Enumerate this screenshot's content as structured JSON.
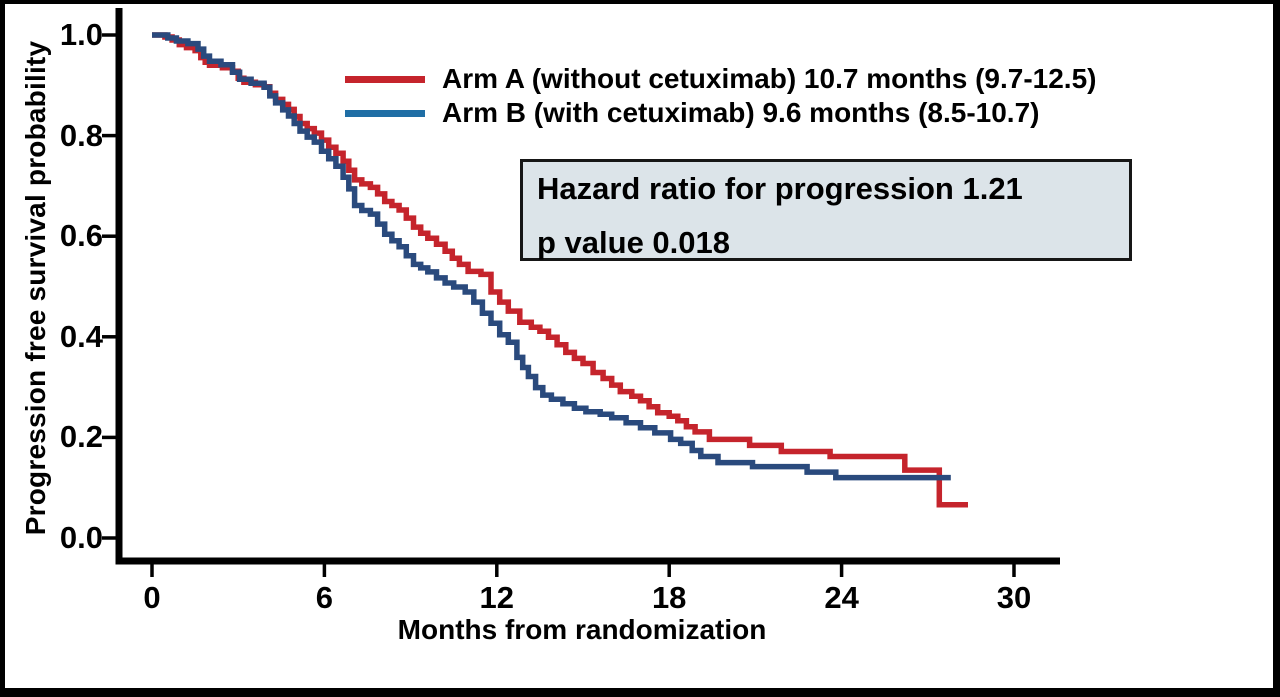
{
  "figure": {
    "background": "#ffffff",
    "border_color": "#000000",
    "axis_color": "#000000",
    "text_color": "#000000"
  },
  "chart_data": {
    "type": "line",
    "subtype": "kaplan-meier-step-curves",
    "title": "",
    "xlabel": "Months from randomization",
    "ylabel": "Progression free survival probability",
    "xlim": [
      0,
      30
    ],
    "ylim": [
      0.0,
      1.0
    ],
    "x_ticks": [
      0,
      6,
      12,
      18,
      24,
      30
    ],
    "y_ticks": [
      "1.0",
      "0.8",
      "0.6",
      "0.4",
      "0.2",
      "0.0"
    ],
    "grid": false,
    "legend_position": "top-inside",
    "series": [
      {
        "name": "Arm A (without cetuximab) 10.7 months (9.7-12.5)",
        "median_months": 10.7,
        "ci": "9.7-12.5",
        "color": "#c5242c",
        "legend_color": "#c5242c",
        "points": [
          [
            0,
            1.0
          ],
          [
            0.45,
            0.996
          ],
          [
            0.7,
            0.99
          ],
          [
            0.95,
            0.981
          ],
          [
            1.2,
            0.975
          ],
          [
            1.5,
            0.969
          ],
          [
            1.7,
            0.955
          ],
          [
            1.85,
            0.946
          ],
          [
            2.0,
            0.94
          ],
          [
            2.45,
            0.935
          ],
          [
            2.8,
            0.928
          ],
          [
            3.0,
            0.914
          ],
          [
            3.2,
            0.906
          ],
          [
            3.6,
            0.901
          ],
          [
            3.9,
            0.897
          ],
          [
            4.1,
            0.884
          ],
          [
            4.3,
            0.872
          ],
          [
            4.55,
            0.862
          ],
          [
            4.75,
            0.852
          ],
          [
            4.95,
            0.838
          ],
          [
            5.15,
            0.824
          ],
          [
            5.4,
            0.814
          ],
          [
            5.65,
            0.805
          ],
          [
            5.9,
            0.791
          ],
          [
            6.15,
            0.777
          ],
          [
            6.4,
            0.765
          ],
          [
            6.65,
            0.749
          ],
          [
            6.85,
            0.731
          ],
          [
            7.05,
            0.712
          ],
          [
            7.3,
            0.704
          ],
          [
            7.6,
            0.697
          ],
          [
            7.85,
            0.684
          ],
          [
            8.1,
            0.669
          ],
          [
            8.35,
            0.661
          ],
          [
            8.6,
            0.652
          ],
          [
            8.85,
            0.636
          ],
          [
            9.1,
            0.618
          ],
          [
            9.35,
            0.606
          ],
          [
            9.6,
            0.596
          ],
          [
            9.9,
            0.584
          ],
          [
            10.2,
            0.57
          ],
          [
            10.45,
            0.556
          ],
          [
            10.7,
            0.544
          ],
          [
            11.0,
            0.53
          ],
          [
            11.45,
            0.524
          ],
          [
            11.8,
            0.489
          ],
          [
            12.1,
            0.469
          ],
          [
            12.4,
            0.451
          ],
          [
            12.8,
            0.429
          ],
          [
            13.2,
            0.419
          ],
          [
            13.5,
            0.411
          ],
          [
            13.8,
            0.399
          ],
          [
            14.1,
            0.384
          ],
          [
            14.4,
            0.369
          ],
          [
            14.7,
            0.357
          ],
          [
            15.0,
            0.347
          ],
          [
            15.35,
            0.329
          ],
          [
            15.7,
            0.317
          ],
          [
            16.0,
            0.304
          ],
          [
            16.3,
            0.291
          ],
          [
            16.7,
            0.282
          ],
          [
            17.0,
            0.273
          ],
          [
            17.3,
            0.261
          ],
          [
            17.6,
            0.249
          ],
          [
            18.0,
            0.242
          ],
          [
            18.3,
            0.233
          ],
          [
            18.6,
            0.221
          ],
          [
            18.9,
            0.211
          ],
          [
            19.4,
            0.196
          ],
          [
            20.8,
            0.184
          ],
          [
            21.9,
            0.172
          ],
          [
            23.6,
            0.162
          ],
          [
            26.2,
            0.135
          ],
          [
            27.4,
            0.066
          ],
          [
            28.4,
            0.066
          ]
        ]
      },
      {
        "name": "Arm B (with cetuximab) 9.6 months (8.5-10.7)",
        "median_months": 9.6,
        "ci": "8.5-10.7",
        "color": "#2a4a7d",
        "legend_color": "#1f6ea5",
        "points": [
          [
            0,
            1.0
          ],
          [
            0.55,
            0.994
          ],
          [
            0.85,
            0.988
          ],
          [
            1.25,
            0.983
          ],
          [
            1.6,
            0.972
          ],
          [
            1.8,
            0.958
          ],
          [
            2.0,
            0.948
          ],
          [
            2.4,
            0.941
          ],
          [
            2.8,
            0.926
          ],
          [
            3.05,
            0.912
          ],
          [
            3.45,
            0.904
          ],
          [
            3.9,
            0.896
          ],
          [
            4.1,
            0.879
          ],
          [
            4.3,
            0.865
          ],
          [
            4.55,
            0.851
          ],
          [
            4.75,
            0.839
          ],
          [
            4.95,
            0.824
          ],
          [
            5.15,
            0.809
          ],
          [
            5.4,
            0.797
          ],
          [
            5.65,
            0.787
          ],
          [
            5.9,
            0.769
          ],
          [
            6.15,
            0.754
          ],
          [
            6.4,
            0.739
          ],
          [
            6.65,
            0.717
          ],
          [
            6.85,
            0.694
          ],
          [
            7.05,
            0.661
          ],
          [
            7.3,
            0.651
          ],
          [
            7.6,
            0.644
          ],
          [
            7.85,
            0.624
          ],
          [
            8.1,
            0.604
          ],
          [
            8.35,
            0.591
          ],
          [
            8.6,
            0.579
          ],
          [
            8.85,
            0.561
          ],
          [
            9.1,
            0.544
          ],
          [
            9.35,
            0.537
          ],
          [
            9.6,
            0.529
          ],
          [
            9.9,
            0.517
          ],
          [
            10.2,
            0.507
          ],
          [
            10.5,
            0.499
          ],
          [
            10.9,
            0.489
          ],
          [
            11.2,
            0.469
          ],
          [
            11.5,
            0.447
          ],
          [
            11.8,
            0.427
          ],
          [
            12.1,
            0.404
          ],
          [
            12.4,
            0.389
          ],
          [
            12.7,
            0.359
          ],
          [
            12.9,
            0.339
          ],
          [
            13.1,
            0.321
          ],
          [
            13.35,
            0.299
          ],
          [
            13.6,
            0.284
          ],
          [
            13.9,
            0.276
          ],
          [
            14.3,
            0.267
          ],
          [
            14.7,
            0.258
          ],
          [
            15.1,
            0.251
          ],
          [
            15.6,
            0.246
          ],
          [
            16.0,
            0.239
          ],
          [
            16.5,
            0.229
          ],
          [
            17.0,
            0.219
          ],
          [
            17.5,
            0.209
          ],
          [
            18.05,
            0.196
          ],
          [
            18.4,
            0.188
          ],
          [
            18.8,
            0.174
          ],
          [
            19.1,
            0.162
          ],
          [
            19.7,
            0.15
          ],
          [
            20.9,
            0.142
          ],
          [
            22.8,
            0.131
          ],
          [
            23.8,
            0.12
          ],
          [
            27.8,
            0.12
          ]
        ]
      }
    ],
    "annotation_box": {
      "lines": [
        "Hazard ratio for progression 1.21",
        "p value 0.018"
      ],
      "hazard_ratio": 1.21,
      "p_value": 0.018,
      "background": "#dce4e9",
      "border_color": "#161616"
    }
  }
}
